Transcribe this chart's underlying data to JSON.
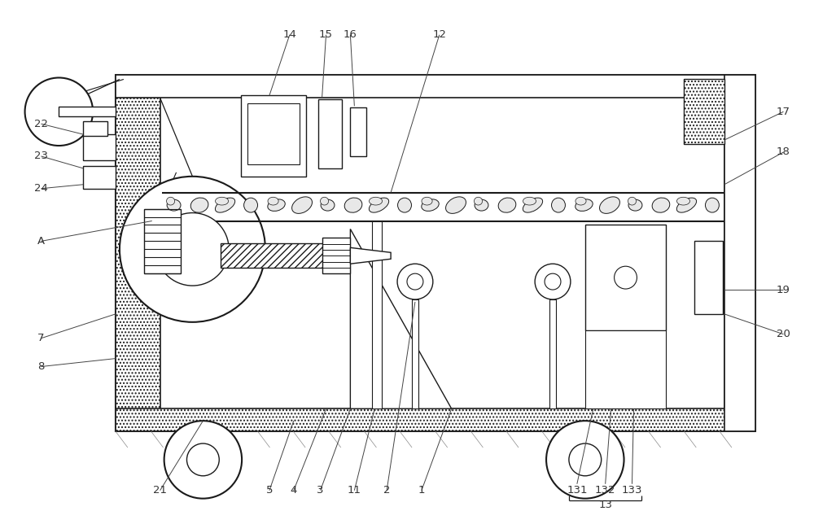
{
  "bg_color": "#ffffff",
  "lc": "#1a1a1a",
  "figsize": [
    10.0,
    6.28
  ],
  "dpi": 100,
  "lw": 1.0,
  "hatch_dot": "....",
  "hatch_slash": "////",
  "hatch_line": "----"
}
